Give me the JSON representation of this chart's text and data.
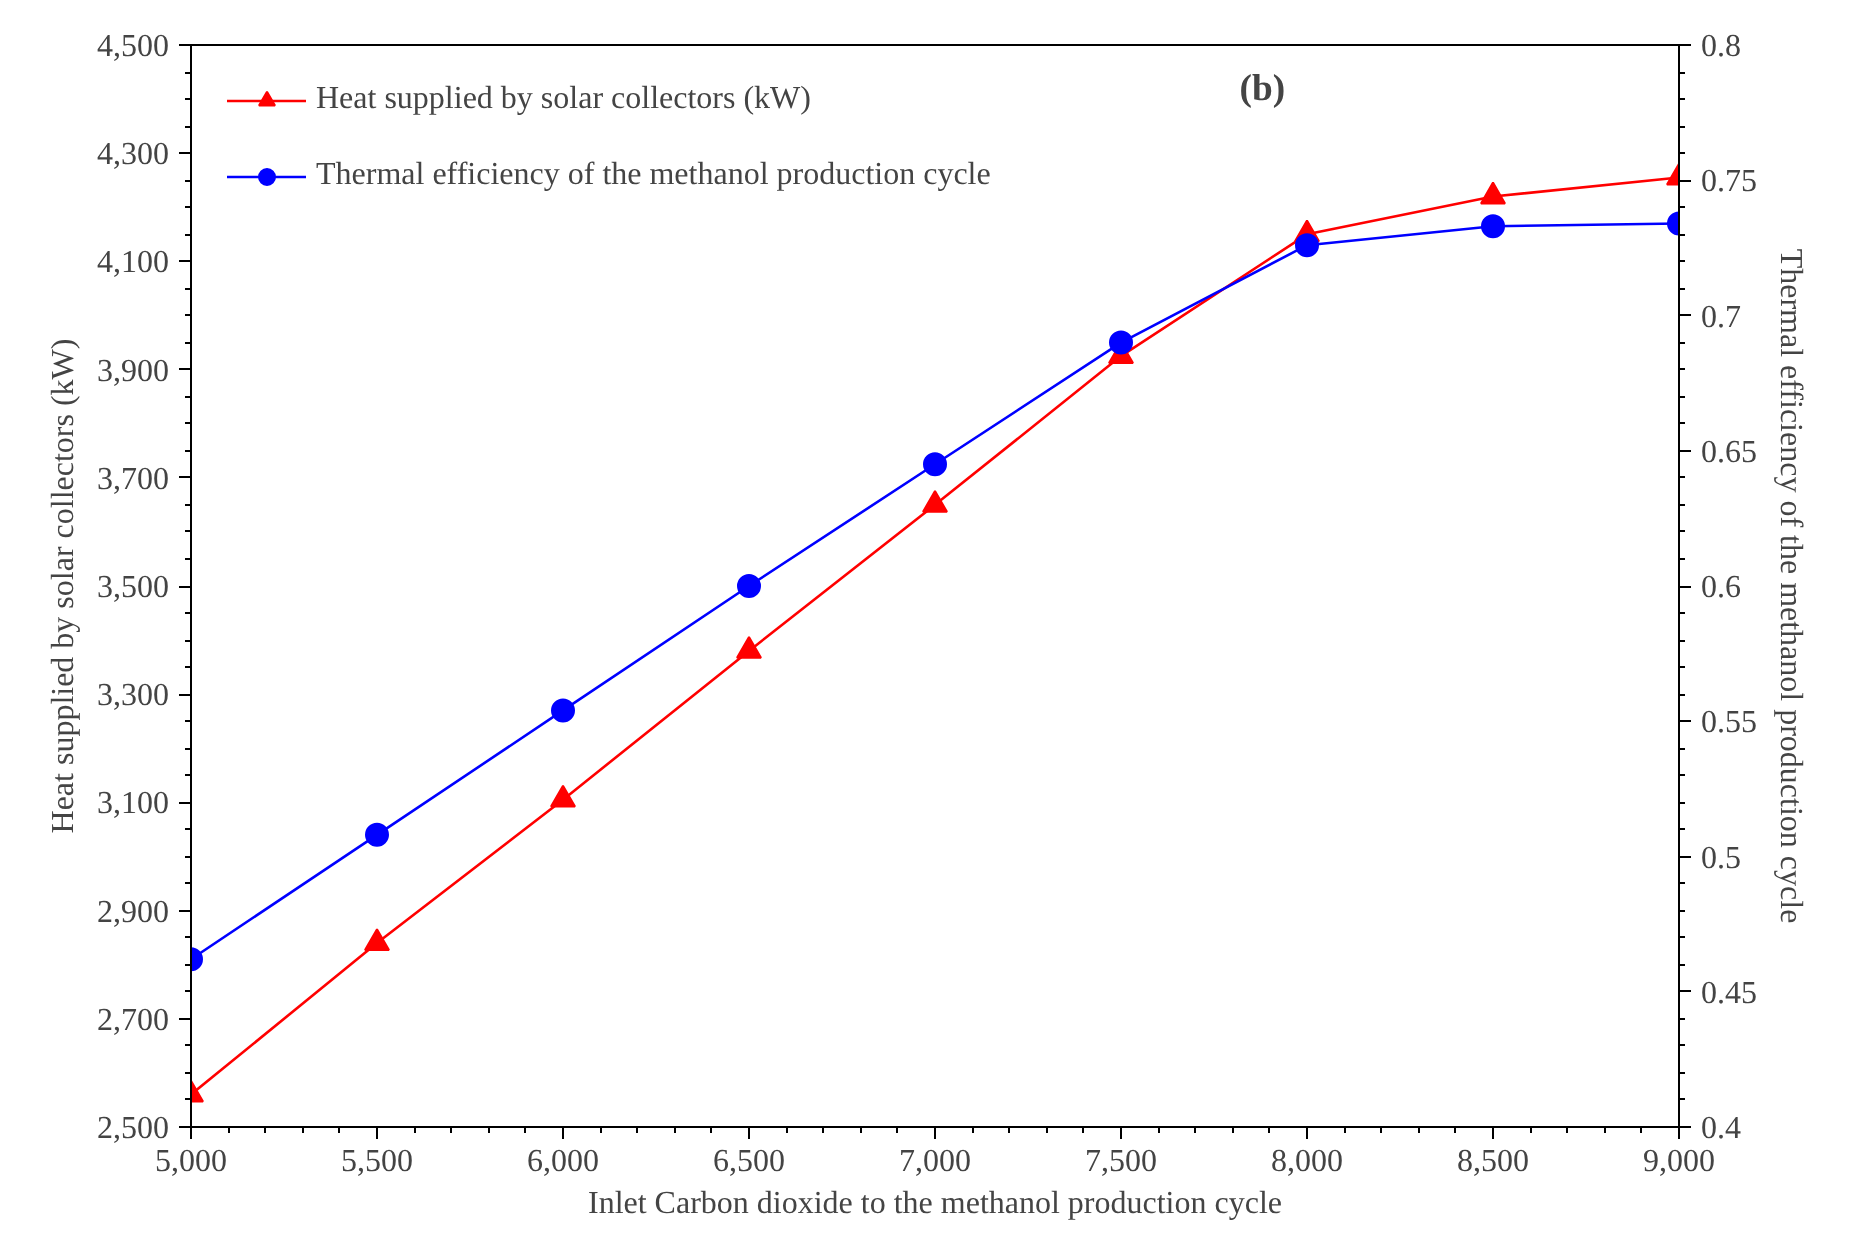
{
  "chart_data": {
    "type": "line",
    "xlabel": "Inlet Carbon dioxide to the methanol production cycle",
    "ylabel": "Heat supplied by solar collectors (kW)",
    "y2label": "Thermal efficiency of the methanol production cycle",
    "x": [
      5000,
      5500,
      6000,
      6500,
      7000,
      7500,
      8000,
      8500,
      9000
    ],
    "series": [
      {
        "name": "Heat supplied by solar collectors (kW)",
        "color": "#ff0000",
        "marker": "triangle",
        "values": [
          2560,
          2840,
          3105,
          3380,
          3650,
          3925,
          4150,
          4220,
          4255
        ]
      },
      {
        "name": "Thermal efficiency of the methanol production cycle",
        "color": "#0000ff",
        "marker": "circle",
        "axis": "y2",
        "values": [
          0.462,
          0.508,
          0.554,
          0.6,
          0.645,
          0.69,
          0.726,
          0.733,
          0.734
        ]
      }
    ],
    "xlim": [
      5000,
      9000
    ],
    "xticks": [
      {
        "value": 5000,
        "label": "5,000"
      },
      {
        "value": 5500,
        "label": "5,500"
      },
      {
        "value": 6000,
        "label": "6,000"
      },
      {
        "value": 6500,
        "label": "6,500"
      },
      {
        "value": 7000,
        "label": "7,000"
      },
      {
        "value": 7500,
        "label": "7,500"
      },
      {
        "value": 8000,
        "label": "8,000"
      },
      {
        "value": 8500,
        "label": "8,500"
      },
      {
        "value": 9000,
        "label": "9,000"
      }
    ],
    "ylim": [
      2500,
      4500
    ],
    "yticks": [
      {
        "value": 2500,
        "label": "2,500"
      },
      {
        "value": 2700,
        "label": "2,700"
      },
      {
        "value": 2900,
        "label": "2,900"
      },
      {
        "value": 3100,
        "label": "3,100"
      },
      {
        "value": 3300,
        "label": "3,300"
      },
      {
        "value": 3500,
        "label": "3,500"
      },
      {
        "value": 3700,
        "label": "3,700"
      },
      {
        "value": 3900,
        "label": "3,900"
      },
      {
        "value": 4100,
        "label": "4,100"
      },
      {
        "value": 4300,
        "label": "4,300"
      },
      {
        "value": 4500,
        "label": "4,500"
      }
    ],
    "y2lim": [
      0.4,
      0.8
    ],
    "y2ticks": [
      0.4,
      0.45,
      0.5,
      0.55,
      0.6,
      0.65,
      0.7,
      0.75,
      0.8
    ],
    "annotations": [
      "(b)"
    ],
    "legend": "top left",
    "line_style": "solid"
  }
}
